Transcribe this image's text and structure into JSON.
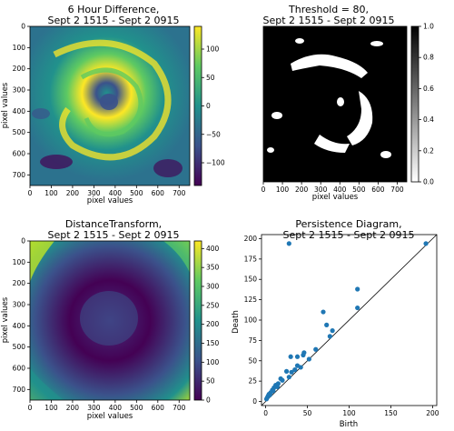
{
  "chart_data": [
    {
      "type": "heatmap",
      "title_lines": [
        "6 Hour Difference,",
        "Sept 2 1515 - Sept 2 0915"
      ],
      "xlabel": "pixel values",
      "ylabel": "pixel values",
      "xticks": [
        "0",
        "100",
        "200",
        "300",
        "400",
        "500",
        "600",
        "700"
      ],
      "yticks": [
        "0",
        "100",
        "200",
        "300",
        "400",
        "500",
        "600",
        "700"
      ],
      "xlim": [
        0,
        750
      ],
      "ylim": [
        750,
        0
      ],
      "colormap": "viridis",
      "colorbar": {
        "ticks": [
          "100",
          "50",
          "0",
          "−50",
          "−100"
        ],
        "tick_values": [
          100,
          50,
          0,
          -50,
          -100
        ],
        "range": [
          -140,
          140
        ]
      },
      "colors": [
        "#440154",
        "#3b528b",
        "#21918c",
        "#5ec962",
        "#fde725"
      ]
    },
    {
      "type": "heatmap",
      "title_lines": [
        "Threshold = 80,",
        "Sept 2 1515 - Sept 2 0915"
      ],
      "xlabel": "pixel values",
      "ylabel": "",
      "xticks": [
        "0",
        "100",
        "200",
        "300",
        "400",
        "500",
        "600",
        "700"
      ],
      "xlim": [
        0,
        750
      ],
      "colormap": "gray",
      "colorbar": {
        "ticks": [
          "0.0",
          "0.2",
          "0.4",
          "0.6",
          "0.8",
          "1.0"
        ],
        "tick_values": [
          0,
          0.2,
          0.4,
          0.6,
          0.8,
          1.0
        ],
        "range": [
          0,
          1
        ]
      },
      "colors": [
        "#ffffff",
        "#000000"
      ]
    },
    {
      "type": "heatmap",
      "title_lines": [
        "DistanceTransform,",
        "Sept 2 1515 - Sept 2 0915"
      ],
      "xlabel": "pixel values",
      "ylabel": "pixel values",
      "xticks": [
        "0",
        "100",
        "200",
        "300",
        "400",
        "500",
        "600",
        "700"
      ],
      "yticks": [
        "0",
        "100",
        "200",
        "300",
        "400",
        "500",
        "600",
        "700"
      ],
      "xlim": [
        0,
        750
      ],
      "ylim": [
        750,
        0
      ],
      "colormap": "viridis",
      "colorbar": {
        "ticks": [
          "400",
          "350",
          "300",
          "250",
          "200",
          "150",
          "100",
          "50",
          "0"
        ],
        "tick_values": [
          400,
          350,
          300,
          250,
          200,
          150,
          100,
          50,
          0
        ],
        "range": [
          0,
          420
        ]
      },
      "colors": [
        "#440154",
        "#3b528b",
        "#21918c",
        "#5ec962",
        "#fde725"
      ]
    },
    {
      "type": "scatter",
      "title_lines": [
        "Persistence Diagram,",
        "Sept 2 1515 - Sept 2 0915"
      ],
      "xlabel": "Birth",
      "ylabel": "Death",
      "xticks": [
        "0",
        "50",
        "100",
        "150",
        "200"
      ],
      "xtick_values": [
        0,
        50,
        100,
        150,
        200
      ],
      "yticks": [
        "0",
        "25",
        "50",
        "75",
        "100",
        "125",
        "150",
        "175",
        "200"
      ],
      "ytick_values": [
        0,
        25,
        50,
        75,
        100,
        125,
        150,
        175,
        200
      ],
      "xlim": [
        -5,
        205
      ],
      "ylim": [
        -5,
        205
      ],
      "diagonal": true,
      "point_color": "#1f77b4",
      "points": [
        [
          28,
          194
        ],
        [
          192,
          194
        ],
        [
          110,
          138
        ],
        [
          69,
          110
        ],
        [
          110,
          115
        ],
        [
          73,
          94
        ],
        [
          80,
          87
        ],
        [
          77,
          80
        ],
        [
          60,
          64
        ],
        [
          30,
          55
        ],
        [
          38,
          55
        ],
        [
          45,
          57
        ],
        [
          46,
          60
        ],
        [
          52,
          52
        ],
        [
          42,
          42
        ],
        [
          38,
          44
        ],
        [
          35,
          39
        ],
        [
          25,
          37
        ],
        [
          18,
          28
        ],
        [
          20,
          26
        ],
        [
          28,
          30
        ],
        [
          31,
          36
        ],
        [
          15,
          22
        ],
        [
          12,
          20
        ],
        [
          10,
          17
        ],
        [
          8,
          14
        ],
        [
          6,
          11
        ],
        [
          4,
          9
        ],
        [
          3,
          7
        ],
        [
          2,
          5
        ],
        [
          1,
          3
        ],
        [
          5,
          8
        ],
        [
          9,
          13
        ],
        [
          14,
          18
        ]
      ]
    }
  ]
}
